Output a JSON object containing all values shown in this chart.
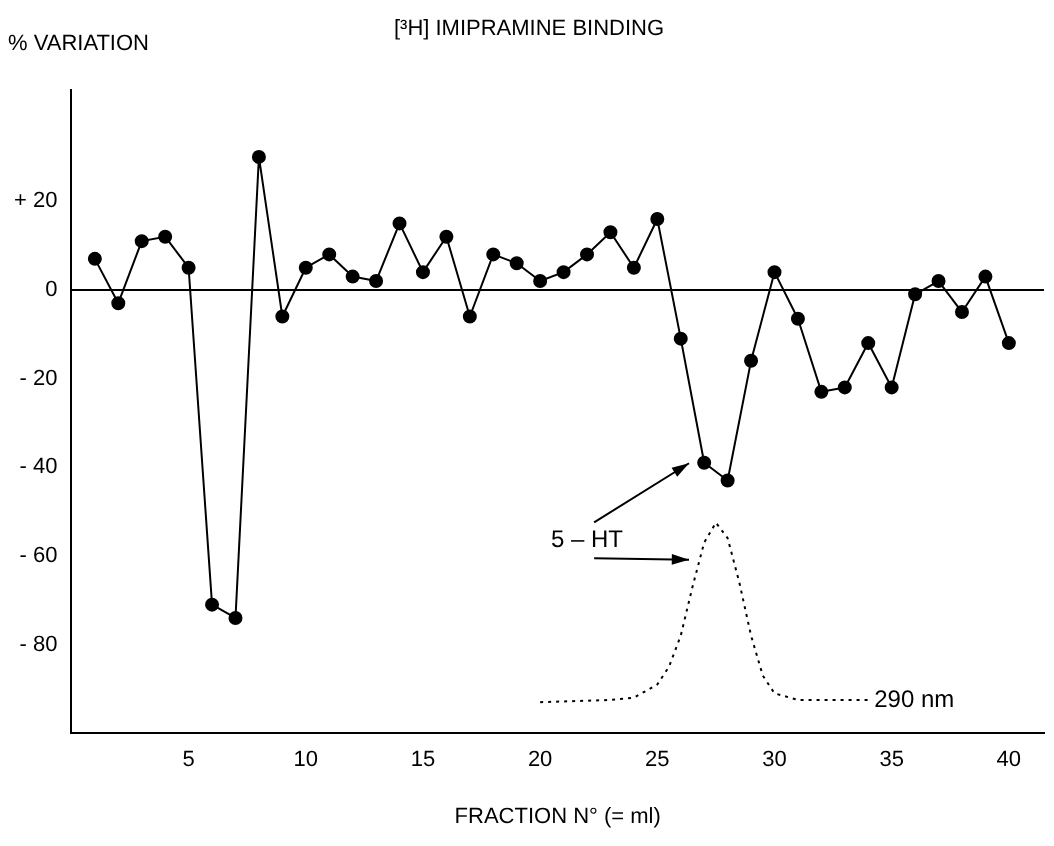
{
  "chart_data": {
    "type": "line",
    "title": "[³H] IMIPRAMINE BINDING",
    "ylabel": "% VARIATION",
    "xlabel": "FRACTION N° (= ml)",
    "xlim": [
      0,
      41.5
    ],
    "xticks": [
      5,
      10,
      15,
      20,
      25,
      30,
      35,
      40
    ],
    "ylim": [
      -100,
      45
    ],
    "yticks": [
      {
        "value": 20,
        "label": "+ 20"
      },
      0,
      {
        "value": -20,
        "label": "- 20"
      },
      {
        "value": -40,
        "label": "- 40"
      },
      {
        "value": -60,
        "label": "- 60"
      },
      {
        "value": -80,
        "label": "- 80"
      }
    ],
    "grid": false,
    "legend": false,
    "ref_lines": [
      {
        "axis": "y",
        "value": 0,
        "color": "#000000"
      }
    ],
    "series": [
      {
        "color": "#000000",
        "marker": "circle",
        "line_style": "solid",
        "x": [
          1,
          2,
          3,
          4,
          5,
          6,
          7,
          8,
          9,
          10,
          11,
          12,
          13,
          14,
          15,
          16,
          17,
          18,
          19,
          20,
          21,
          22,
          23,
          24,
          25,
          26,
          27,
          28,
          29,
          30,
          31,
          32,
          33,
          34,
          35,
          36,
          37,
          38,
          39,
          40
        ],
        "values": [
          7,
          -3,
          11,
          12,
          5,
          -71,
          -74,
          30,
          -6,
          5,
          8,
          3,
          2,
          15,
          4,
          12,
          -6,
          8,
          6,
          2,
          4,
          8,
          13,
          5,
          16,
          -11,
          -39,
          -43,
          -16,
          4,
          -6.5,
          -23,
          -22,
          -12,
          -22,
          -1,
          2,
          -5,
          3,
          -12
        ]
      },
      {
        "name": "290 nm",
        "color": "#000000",
        "marker": "none",
        "line_style": "dotted",
        "x": [
          20,
          23,
          24,
          25,
          25.5,
          26,
          26.5,
          27,
          27.5,
          28,
          28.5,
          29,
          29.5,
          30,
          31,
          34
        ],
        "values": [
          -93,
          -92.5,
          -92,
          -89,
          -85,
          -78,
          -67,
          -57,
          -52.5,
          -56,
          -66,
          -78,
          -87,
          -91,
          -92.5,
          -92.5
        ]
      }
    ],
    "annotations": [
      "5 – HT"
    ]
  }
}
